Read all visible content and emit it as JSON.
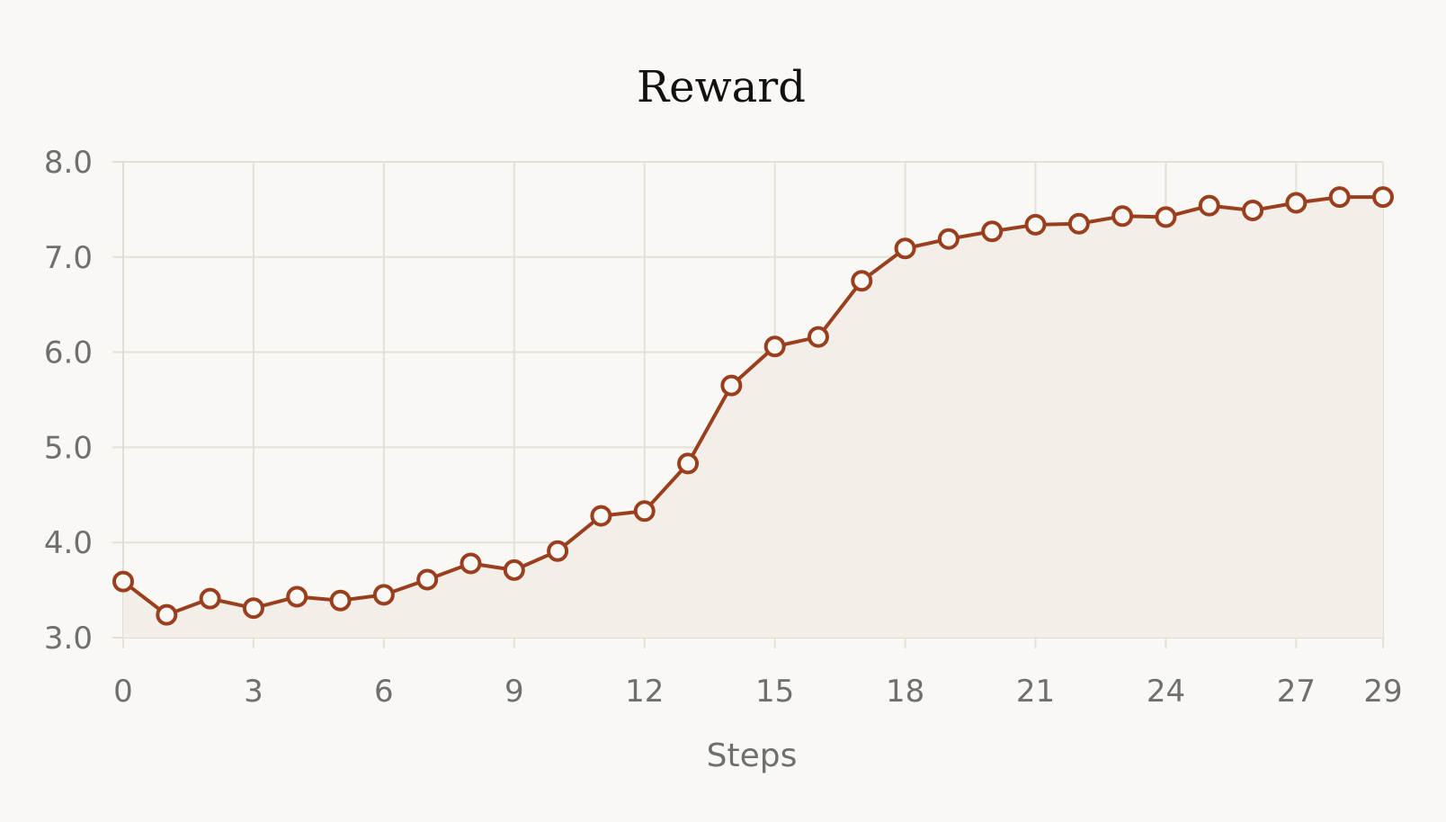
{
  "chart_data": {
    "type": "line",
    "title": "Reward",
    "xlabel": "Steps",
    "ylabel": "",
    "xlim": [
      0,
      29
    ],
    "ylim": [
      3.0,
      8.0
    ],
    "xticks": [
      0,
      3,
      6,
      9,
      12,
      15,
      18,
      21,
      24,
      27,
      29
    ],
    "yticks": [
      3.0,
      4.0,
      5.0,
      6.0,
      7.0,
      8.0
    ],
    "grid": true,
    "legend": "none",
    "series": [
      {
        "color": "#9a3f1e",
        "fill_color": "#f4eee8",
        "x": [
          0,
          1,
          2,
          3,
          4,
          5,
          6,
          7,
          8,
          9,
          10,
          11,
          12,
          13,
          14,
          15,
          16,
          17,
          18,
          19,
          20,
          21,
          22,
          23,
          24,
          25,
          26,
          27,
          28,
          29
        ],
        "y": [
          3.59,
          3.24,
          3.41,
          3.31,
          3.43,
          3.39,
          3.45,
          3.61,
          3.78,
          3.71,
          3.91,
          4.28,
          4.33,
          4.83,
          5.65,
          6.06,
          6.16,
          6.75,
          7.09,
          7.19,
          7.27,
          7.34,
          7.35,
          7.43,
          7.42,
          7.54,
          7.49,
          7.57,
          7.63,
          7.63
        ]
      }
    ]
  }
}
